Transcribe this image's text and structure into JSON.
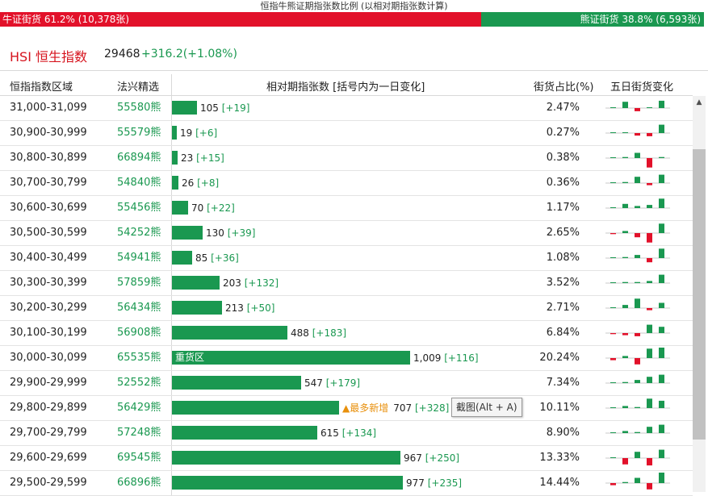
{
  "ratio": {
    "title": "恒指牛熊证期指张数比例 (以相对期指张数计算)",
    "bull_label": "牛证街货 61.2% (10,378张)",
    "bear_label": "熊证街货 38.8% (6,593张)",
    "bull_fraction": 0.612,
    "bull_color": "#e2112a",
    "bear_color": "#1a9850"
  },
  "index": {
    "name": "HSI 恒生指数",
    "price": "29468",
    "change": "+316.2(+1.08%)"
  },
  "columns": {
    "range": "恒指指数区域",
    "code": "法兴精选",
    "contracts": "相对期指张数 [括号内为一日变化]",
    "share": "街货占比(%)",
    "five_day": "五日街货变化"
  },
  "rows": [
    {
      "range": "31,000-31,099",
      "code": "55580熊",
      "contracts": 105,
      "contracts_text": "105",
      "change": "[+19]",
      "share": "2.47%",
      "spark": [
        0,
        0.3,
        -0.15,
        0,
        0.35
      ]
    },
    {
      "range": "30,900-30,999",
      "code": "55579熊",
      "contracts": 19,
      "contracts_text": "19",
      "change": "[+6]",
      "share": "0.27%",
      "spark": [
        0,
        0,
        -0.12,
        -0.15,
        0.4
      ]
    },
    {
      "range": "30,800-30,899",
      "code": "66894熊",
      "contracts": 23,
      "contracts_text": "23",
      "change": "[+15]",
      "share": "0.38%",
      "spark": [
        0,
        0.05,
        0.25,
        -0.45,
        0.05
      ]
    },
    {
      "range": "30,700-30,799",
      "code": "54840熊",
      "contracts": 26,
      "contracts_text": "26",
      "change": "[+8]",
      "share": "0.36%",
      "spark": [
        0,
        0.05,
        0.3,
        -0.1,
        0.4
      ]
    },
    {
      "range": "30,600-30,699",
      "code": "55456熊",
      "contracts": 70,
      "contracts_text": "70",
      "change": "[+22]",
      "share": "1.17%",
      "spark": [
        0,
        0.2,
        0.1,
        0.15,
        0.45
      ]
    },
    {
      "range": "30,500-30,599",
      "code": "54252熊",
      "contracts": 130,
      "contracts_text": "130",
      "change": "[+39]",
      "share": "2.65%",
      "spark": [
        -0.05,
        0.1,
        -0.2,
        -0.45,
        0.45
      ]
    },
    {
      "range": "30,400-30,499",
      "code": "54941熊",
      "contracts": 85,
      "contracts_text": "85",
      "change": "[+36]",
      "share": "1.08%",
      "spark": [
        0,
        0.05,
        0.15,
        -0.2,
        0.45
      ]
    },
    {
      "range": "30,300-30,399",
      "code": "57859熊",
      "contracts": 203,
      "contracts_text": "203",
      "change": "[+132]",
      "share": "3.52%",
      "spark": [
        0,
        0.05,
        0.05,
        0.1,
        0.4
      ]
    },
    {
      "range": "30,200-30,299",
      "code": "56434熊",
      "contracts": 213,
      "contracts_text": "213",
      "change": "[+50]",
      "share": "2.71%",
      "spark": [
        0,
        0.15,
        0.45,
        -0.1,
        0.25
      ]
    },
    {
      "range": "30,100-30,199",
      "code": "56908熊",
      "contracts": 488,
      "contracts_text": "488",
      "change": "[+183]",
      "share": "6.84%",
      "spark": [
        -0.05,
        -0.1,
        -0.15,
        0.4,
        0.3
      ]
    },
    {
      "range": "30,000-30,099",
      "code": "65535熊",
      "contracts": 1009,
      "contracts_text": "1,009",
      "change": "[+116]",
      "share": "20.24%",
      "spark": [
        -0.1,
        0.1,
        -0.3,
        0.45,
        0.5
      ],
      "bar_label": "重货区"
    },
    {
      "range": "29,900-29,999",
      "code": "52552熊",
      "contracts": 547,
      "contracts_text": "547",
      "change": "[+179]",
      "share": "7.34%",
      "spark": [
        0,
        0.05,
        0.15,
        0.3,
        0.4
      ]
    },
    {
      "range": "29,800-29,899",
      "code": "56429熊",
      "contracts": 707,
      "contracts_text": "707",
      "change": "[+328]",
      "share": "10.11%",
      "spark": [
        0,
        0.1,
        0.05,
        0.45,
        0.35
      ],
      "new_tag": "▲最多新增"
    },
    {
      "range": "29,700-29,799",
      "code": "57248熊",
      "contracts": 615,
      "contracts_text": "615",
      "change": "[+134]",
      "share": "8.90%",
      "spark": [
        0,
        0.1,
        0.05,
        0.3,
        0.4
      ]
    },
    {
      "range": "29,600-29,699",
      "code": "69545熊",
      "contracts": 967,
      "contracts_text": "967",
      "change": "[+250]",
      "share": "13.33%",
      "spark": [
        0,
        -0.3,
        0.3,
        -0.35,
        0.4
      ]
    },
    {
      "range": "29,500-29,599",
      "code": "66896熊",
      "contracts": 977,
      "contracts_text": "977",
      "change": "[+235]",
      "share": "14.44%",
      "spark": [
        -0.1,
        0.05,
        0.25,
        -0.3,
        0.5
      ]
    }
  ],
  "tooltip": "截图(Alt + A)",
  "scrollbar": {
    "up_icon": "▲"
  }
}
